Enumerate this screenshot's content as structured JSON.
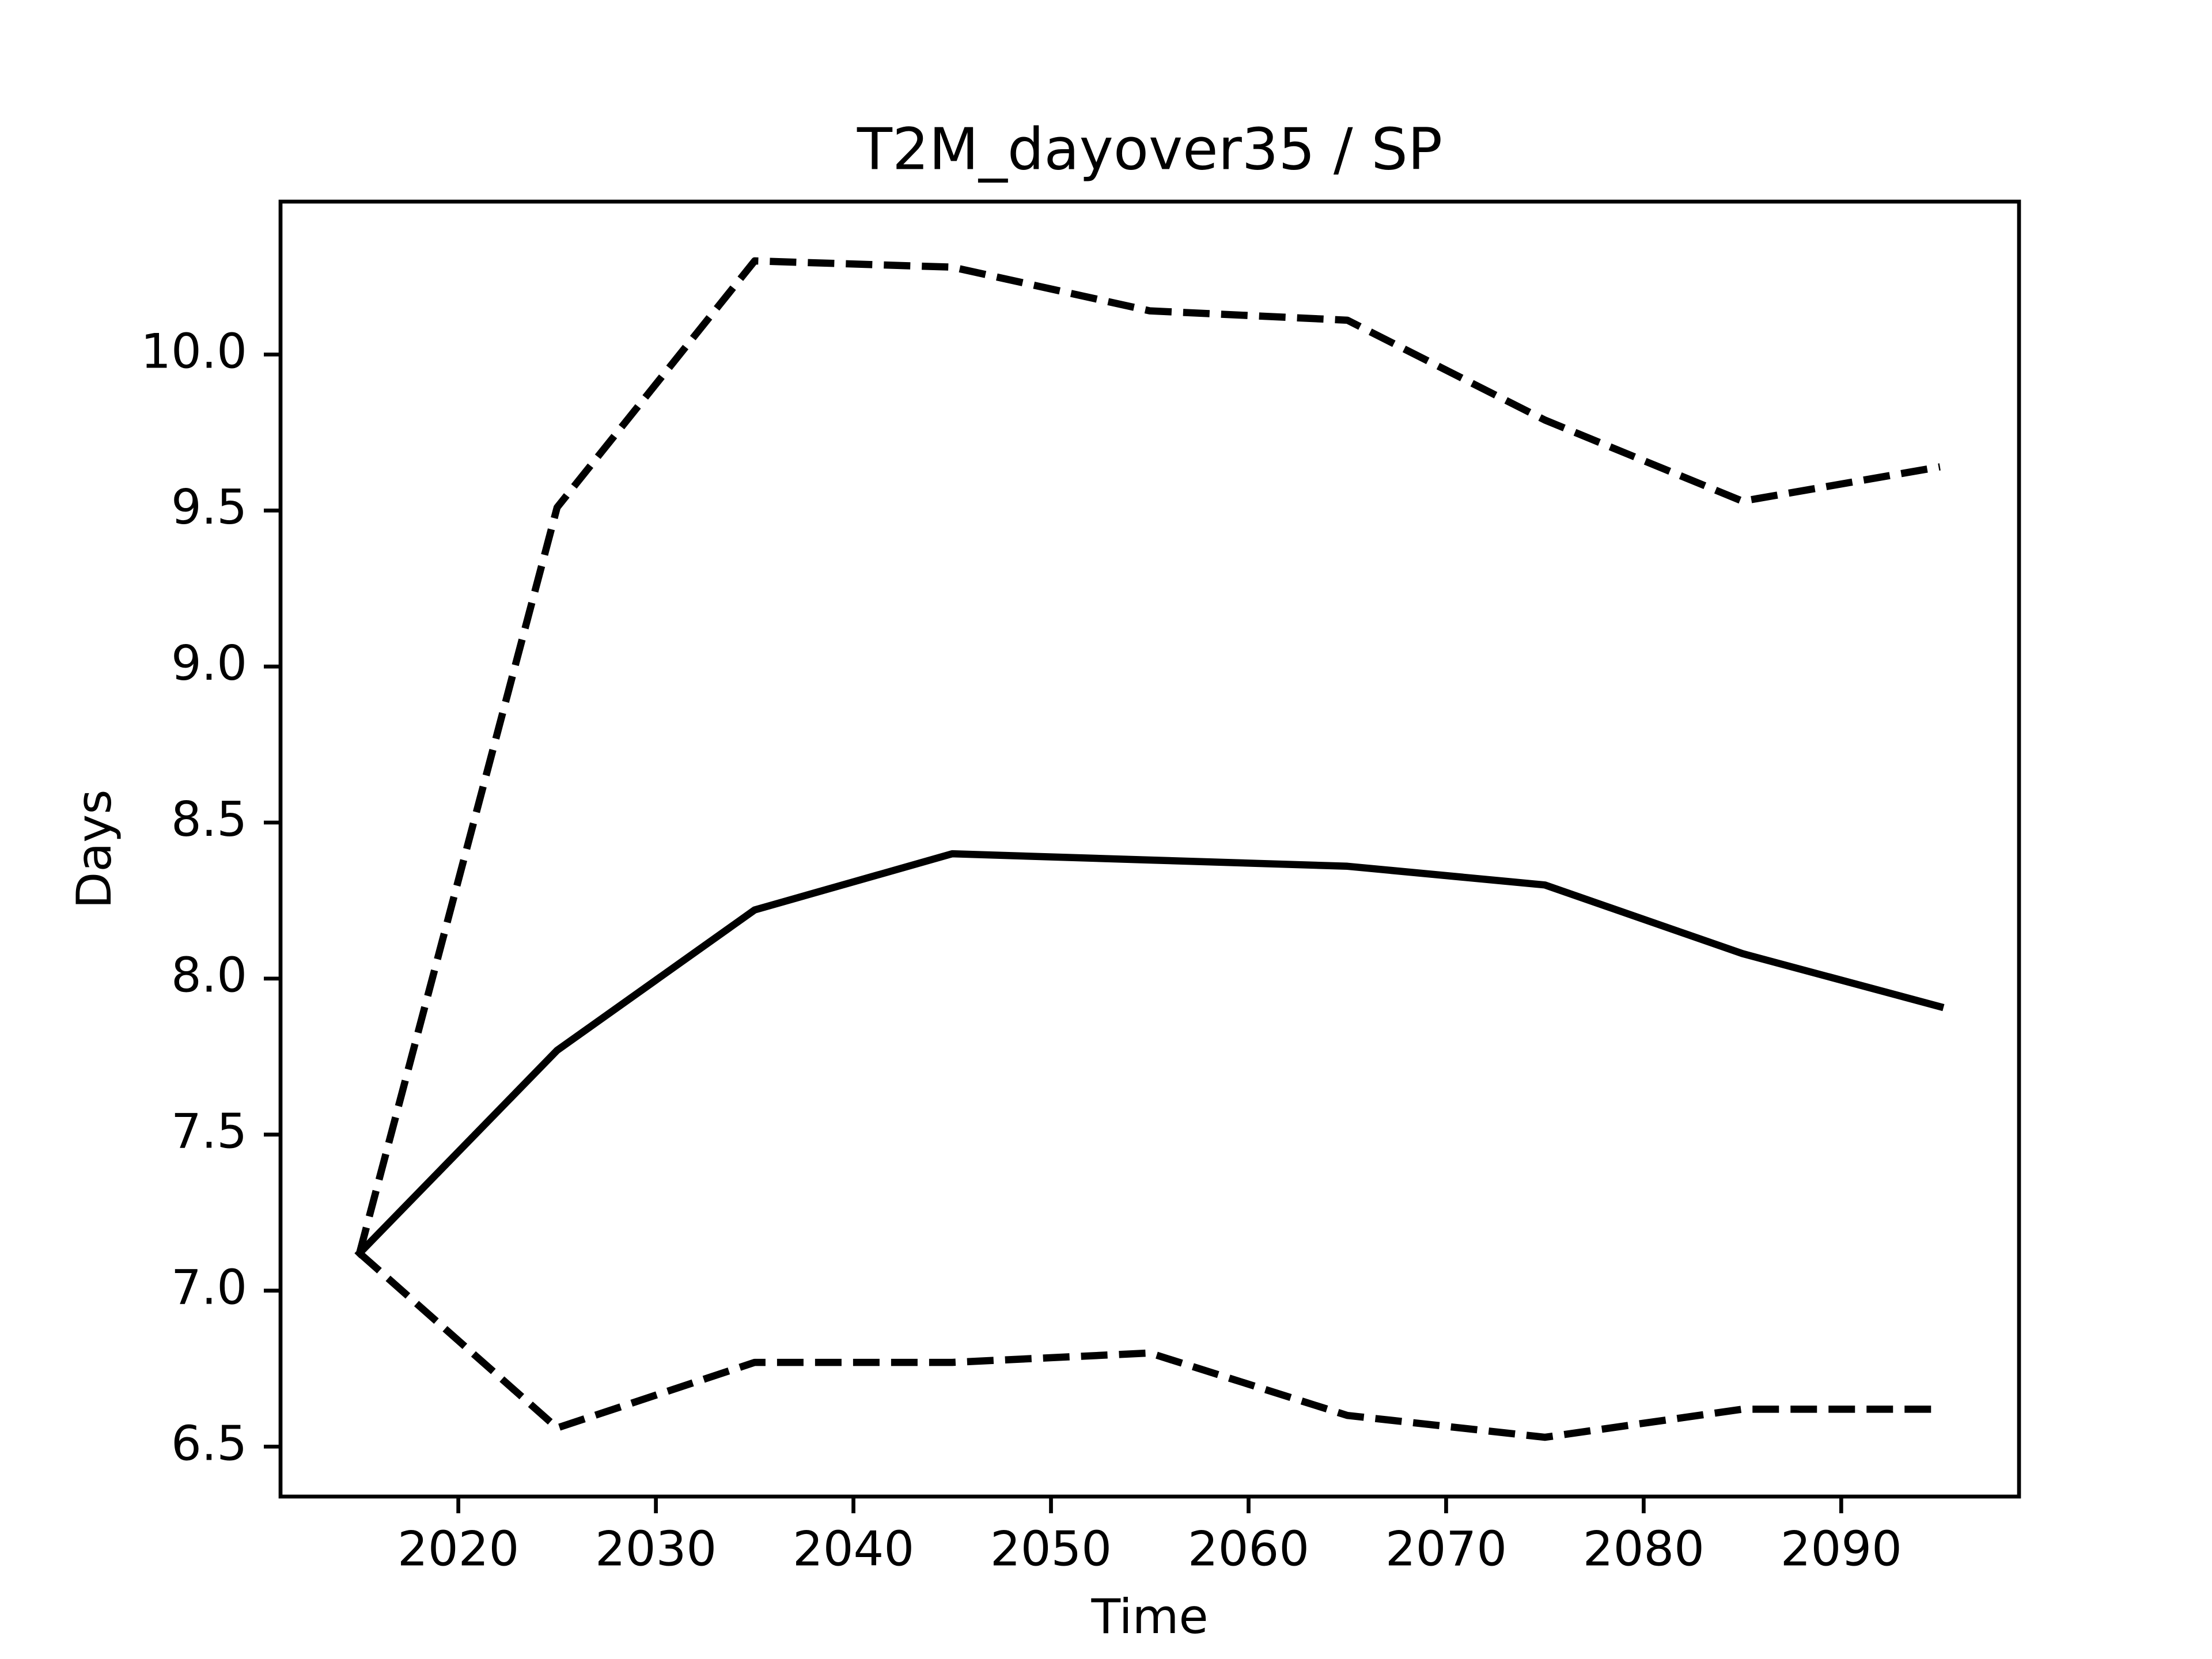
{
  "chart_data": {
    "type": "line",
    "title": "T2M_dayover35 / SP",
    "x_label": "Time",
    "y_label": "Days",
    "x": [
      2015,
      2025,
      2035,
      2045,
      2055,
      2065,
      2075,
      2085,
      2095
    ],
    "series": [
      {
        "color": "#000000",
        "linestyle": "solid",
        "values": [
          7.12,
          7.77,
          8.22,
          8.4,
          8.38,
          8.36,
          8.3,
          8.08,
          7.91
        ]
      },
      {
        "color": "#000000",
        "linestyle": "dashed",
        "values": [
          7.12,
          9.51,
          10.3,
          10.28,
          10.14,
          10.11,
          9.79,
          9.53,
          9.64
        ]
      },
      {
        "color": "#000000",
        "linestyle": "dashed",
        "values": [
          7.12,
          6.56,
          6.77,
          6.77,
          6.8,
          6.6,
          6.53,
          6.62,
          6.62
        ]
      }
    ],
    "xlim": [
      2011,
      2099
    ],
    "ylim": [
      6.34,
      10.49
    ],
    "xticks": [
      2020,
      2030,
      2040,
      2050,
      2060,
      2070,
      2080,
      2090
    ],
    "yticks": [
      {
        "value": 6.5,
        "label": "6.5"
      },
      {
        "value": 7,
        "label": "7.0"
      },
      {
        "value": 7.5,
        "label": "7.5"
      },
      {
        "value": 8,
        "label": "8.0"
      },
      {
        "value": 8.5,
        "label": "8.5"
      },
      {
        "value": 9,
        "label": "9.0"
      },
      {
        "value": 9.5,
        "label": "9.5"
      },
      {
        "value": 10,
        "label": "10.0"
      }
    ],
    "grid": false
  }
}
